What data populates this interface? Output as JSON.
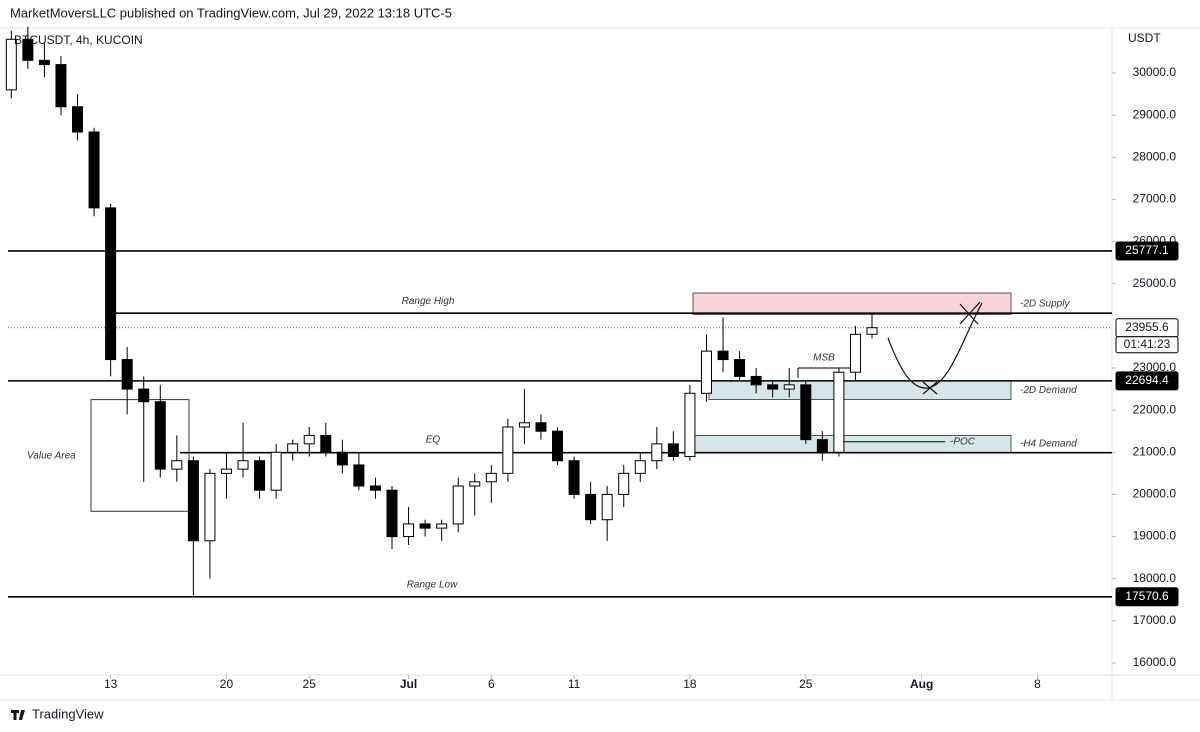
{
  "header": {
    "publisher": "MarketMoversLLC published on TradingView.com, Jul 29, 2022 13:18 UTC-5",
    "brand": "TradingView"
  },
  "chart_data": {
    "type": "candlestick",
    "title": "BTCUSDT, 4h, KUCOIN",
    "y_axis_unit": "USDT",
    "x": [
      7,
      8,
      9,
      10,
      11,
      12,
      13,
      14,
      15,
      16,
      17,
      18,
      19,
      20,
      21,
      22,
      23,
      24,
      25,
      26,
      27,
      28,
      29,
      30,
      31,
      32,
      33,
      34,
      35,
      36,
      37,
      38,
      39,
      40,
      41,
      42,
      43,
      44,
      45,
      46,
      47,
      48,
      49,
      50,
      51,
      52,
      53,
      54,
      55,
      56,
      57,
      58,
      59
    ],
    "open": [
      29600,
      30800,
      30300,
      30200,
      29200,
      28600,
      26800,
      23200,
      22500,
      22200,
      20600,
      20800,
      18900,
      20500,
      20600,
      20800,
      20100,
      21000,
      21200,
      21400,
      21000,
      20700,
      20200,
      20100,
      19000,
      19300,
      19200,
      19300,
      20200,
      20300,
      20500,
      21600,
      21700,
      21500,
      20800,
      20000,
      19400,
      20000,
      20500,
      20800,
      21200,
      20900,
      22400,
      23400,
      23200,
      22800,
      22600,
      22500,
      22600,
      21300,
      21000,
      22900,
      23800
    ],
    "high": [
      31000,
      31100,
      30700,
      30400,
      29500,
      28700,
      26900,
      23500,
      22800,
      22600,
      21400,
      20900,
      20600,
      21000,
      21700,
      20900,
      21200,
      21300,
      21600,
      21700,
      21300,
      21000,
      20400,
      20200,
      19700,
      19400,
      19400,
      20400,
      20500,
      20700,
      21800,
      22500,
      21900,
      21600,
      20900,
      20300,
      20200,
      20700,
      21000,
      21600,
      21500,
      22600,
      23800,
      24200,
      23400,
      23000,
      22700,
      23000,
      22700,
      21500,
      23000,
      24000,
      24300
    ],
    "low": [
      29400,
      30100,
      29900,
      29000,
      28400,
      26600,
      22800,
      21900,
      20300,
      20400,
      20300,
      17600,
      18000,
      19900,
      20400,
      19900,
      19900,
      20800,
      20900,
      20900,
      20500,
      20100,
      19900,
      18700,
      18800,
      19000,
      18900,
      19100,
      19500,
      19800,
      20300,
      21200,
      21300,
      20700,
      19900,
      19300,
      18900,
      19700,
      20300,
      20600,
      20800,
      20800,
      22200,
      22900,
      22700,
      22400,
      22300,
      22300,
      21200,
      20800,
      20900,
      22700,
      23700
    ],
    "close": [
      30800,
      30300,
      30200,
      29200,
      28600,
      26800,
      23200,
      22500,
      22200,
      20600,
      20800,
      18900,
      20500,
      20600,
      20800,
      20100,
      21000,
      21200,
      21400,
      21000,
      20700,
      20200,
      20100,
      19000,
      19300,
      19200,
      19300,
      20200,
      20300,
      20500,
      21600,
      21700,
      21500,
      20800,
      20000,
      19400,
      20000,
      20500,
      20800,
      21200,
      20900,
      22400,
      23400,
      23200,
      22800,
      22600,
      22500,
      22600,
      21300,
      21000,
      22900,
      23800,
      23955.6
    ],
    "up_color": "#ffffff",
    "down_color": "#000000",
    "outline_color": "#000000",
    "xlim": [
      6.8,
      73.5
    ],
    "xticks": [
      {
        "value": 13,
        "label": "13"
      },
      {
        "value": 20,
        "label": "20"
      },
      {
        "value": 25,
        "label": "25"
      },
      {
        "value": 31,
        "label": "Jul"
      },
      {
        "value": 36,
        "label": "6"
      },
      {
        "value": 41,
        "label": "11"
      },
      {
        "value": 48,
        "label": "18"
      },
      {
        "value": 55,
        "label": "25"
      },
      {
        "value": 62,
        "label": "Aug"
      },
      {
        "value": 69,
        "label": "8"
      }
    ],
    "ylim": [
      15715,
      31068
    ],
    "yticks": [
      {
        "value": 16000,
        "label": "16000.0"
      },
      {
        "value": 17000,
        "label": "17000.0"
      },
      {
        "value": 18000,
        "label": "18000.0"
      },
      {
        "value": 19000,
        "label": "19000.0"
      },
      {
        "value": 20000,
        "label": "20000.0"
      },
      {
        "value": 21000,
        "label": "21000.0"
      },
      {
        "value": 22000,
        "label": "22000.0"
      },
      {
        "value": 23000,
        "label": "23000.0"
      },
      {
        "value": 25000,
        "label": "25000.0"
      },
      {
        "value": 26000,
        "label": "26000.0"
      },
      {
        "value": 27000,
        "label": "27000.0"
      },
      {
        "value": 28000,
        "label": "28000.0"
      },
      {
        "value": 29000,
        "label": "29000.0"
      },
      {
        "value": 30000,
        "label": "30000.0"
      }
    ],
    "levels": [
      {
        "value": 25777.1,
        "style": "solid",
        "price_label": true
      },
      {
        "value": 24300,
        "style": "solid",
        "name": "Range High"
      },
      {
        "value": 23955.6,
        "style": "dotted",
        "price_label": true,
        "countdown": "01:41:23"
      },
      {
        "value": 22694.4,
        "style": "solid",
        "price_label": true
      },
      {
        "value": 20990,
        "style": "solid",
        "name": "EQ"
      },
      {
        "value": 17570.6,
        "style": "solid",
        "price_label": true,
        "name": "Range Low"
      }
    ],
    "zones": [
      {
        "name": "-2D Supply",
        "low": 24270,
        "high": 24780,
        "color": "#f9d3d7"
      },
      {
        "name": "-2D Demand",
        "low": 22250,
        "high": 22694.4,
        "color": "#d5e6e8"
      },
      {
        "name": "-H4 Demand",
        "low": 20990,
        "high": 21400,
        "color": "#d5e6e8"
      }
    ],
    "value_area": {
      "name": "Value Area",
      "low": 19600,
      "high": 22250
    },
    "msb": {
      "name": "MSB",
      "value": 23000
    },
    "poc": {
      "name": "-POC",
      "value": 21250
    }
  }
}
